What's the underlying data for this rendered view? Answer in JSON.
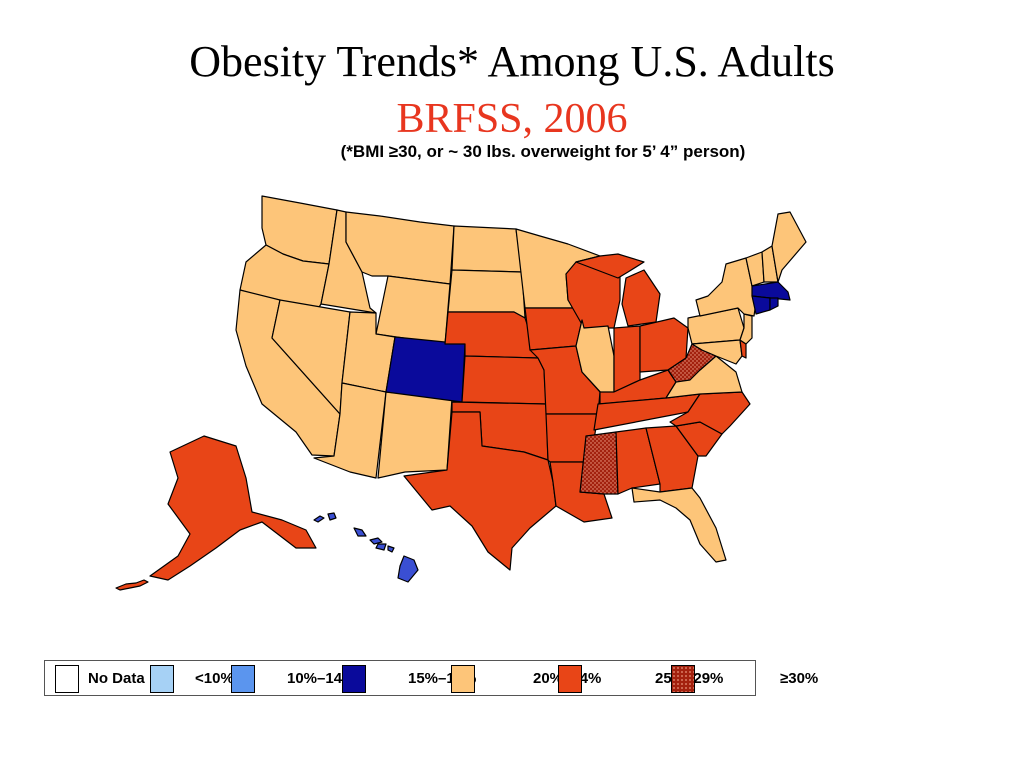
{
  "title": "Obesity Trends* Among U.S. Adults",
  "subtitle": "BRFSS, 2006",
  "note": "(*BMI ≥30, or ~ 30 lbs. overweight for 5’ 4” person)",
  "colors": {
    "title": "#000000",
    "subtitle": "#e8361f",
    "no_data": "#ffffff",
    "lt10": "#a6d1f5",
    "r10_14": "#5b95ee",
    "r15_19": "#0a0a9b",
    "r20_24": "#fdc579",
    "r25_29": "#e84517",
    "ge30": "#a3210e",
    "hawaii": "#3a4fd3",
    "border": "#000000"
  },
  "legend": [
    {
      "label": "No Data",
      "color_key": "no_data"
    },
    {
      "label": "<10%",
      "color_key": "lt10"
    },
    {
      "label": "10%–14%",
      "color_key": "r10_14"
    },
    {
      "label": "15%–19%",
      "color_key": "r15_19"
    },
    {
      "label": "20%–24%",
      "color_key": "r20_24"
    },
    {
      "label": "25%–29%",
      "color_key": "r25_29"
    },
    {
      "label": "≥30%",
      "color_key": "ge30"
    }
  ],
  "states": {
    "WA": "r20_24",
    "OR": "r20_24",
    "CA": "r20_24",
    "ID": "r20_24",
    "NV": "r20_24",
    "MT": "r20_24",
    "WY": "r20_24",
    "UT": "r20_24",
    "AZ": "r20_24",
    "NM": "r20_24",
    "CO": "r15_19",
    "ND": "r20_24",
    "SD": "r20_24",
    "MN": "r20_24",
    "NE": "r25_29",
    "KS": "r25_29",
    "OK": "r25_29",
    "TX": "r25_29",
    "IA": "r25_29",
    "MO": "r25_29",
    "AR": "r25_29",
    "LA": "r25_29",
    "WI": "r25_29",
    "IL": "r20_24",
    "MI": "r25_29",
    "IN": "r25_29",
    "OH": "r25_29",
    "KY": "r25_29",
    "TN": "r25_29",
    "MS": "ge30",
    "AL": "r25_29",
    "GA": "r25_29",
    "FL": "r20_24",
    "SC": "r25_29",
    "NC": "r25_29",
    "VA": "r20_24",
    "WV": "ge30",
    "PA": "r20_24",
    "NY": "r20_24",
    "VT": "r20_24",
    "NH": "r20_24",
    "ME": "r20_24",
    "MA": "r15_19",
    "CT": "r15_19",
    "RI": "r15_19",
    "NJ": "r20_24",
    "DE": "r25_29",
    "MD": "r20_24",
    "AK": "r25_29",
    "HI": "r15_19"
  }
}
